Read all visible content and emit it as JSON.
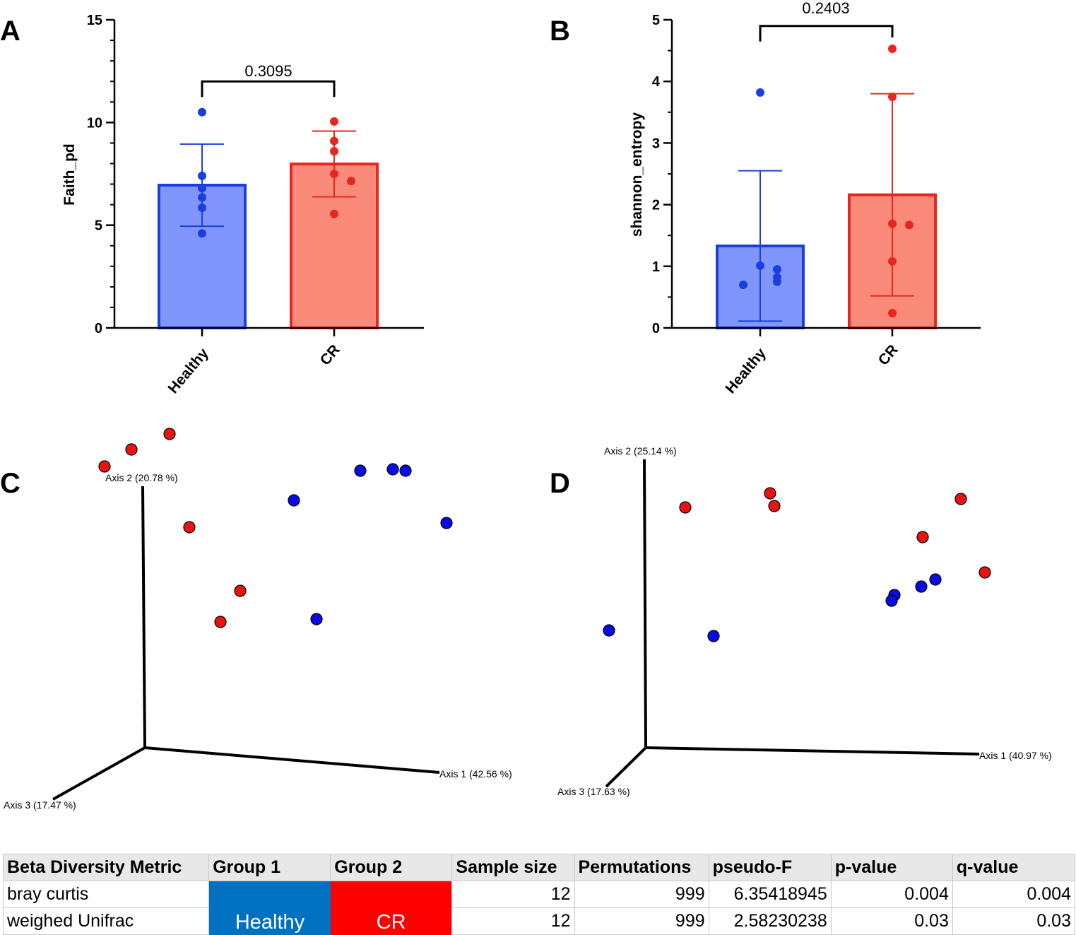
{
  "colors": {
    "healthy": "#1a3fe0",
    "healthy_fill": "#8096fc",
    "cr": "#e8261c",
    "cr_fill": "#fa8b7b",
    "pcoa_blue": "#0a0ae6",
    "pcoa_red": "#e81414",
    "table_blue": "#0070c0",
    "table_red": "#ff0000"
  },
  "chart_data": [
    {
      "panel": "A",
      "type": "bar",
      "title": "",
      "xlabel": "",
      "ylabel": "Faith_pd",
      "ylim": [
        0,
        15
      ],
      "yticks": [
        0,
        5,
        10,
        15
      ],
      "minor_step": 1,
      "categories": [
        "Healthy",
        "CR"
      ],
      "means": [
        6.95,
        7.98
      ],
      "sd": [
        2.0,
        1.6
      ],
      "points": [
        [
          10.5,
          7.4,
          6.8,
          6.35,
          5.85,
          4.6
        ],
        [
          10.05,
          9.1,
          8.6,
          7.5,
          7.15,
          5.55
        ]
      ],
      "comparison": {
        "label": "0.3095",
        "y": 12.0
      }
    },
    {
      "panel": "B",
      "type": "bar",
      "title": "",
      "xlabel": "",
      "ylabel": "shannon_entropy",
      "ylim": [
        0,
        5
      ],
      "yticks": [
        0,
        1,
        2,
        3,
        4,
        5
      ],
      "minor_step": 0.5,
      "categories": [
        "Healthy",
        "CR"
      ],
      "means": [
        1.33,
        2.16
      ],
      "sd": [
        1.22,
        1.64
      ],
      "points": [
        [
          3.82,
          1.01,
          0.95,
          0.82,
          0.75,
          0.7
        ],
        [
          4.53,
          3.75,
          1.69,
          1.67,
          1.08,
          0.24
        ]
      ],
      "comparison": {
        "label": "0.2403",
        "y": 4.9
      }
    },
    {
      "panel": "C",
      "type": "scatter",
      "title": "",
      "projection": "3d-pcoa",
      "axes": [
        "Axis 1 (42.56 %)",
        "Axis 2 (20.78 %)",
        "Axis 3 (17.47 %)"
      ],
      "series": [
        {
          "name": "CR",
          "color": "red",
          "points": [
            [
              -0.7,
              0.93
            ],
            [
              -0.97,
              0.82
            ],
            [
              -1.16,
              0.7
            ],
            [
              -0.56,
              0.27
            ],
            [
              -0.2,
              -0.18
            ],
            [
              -0.34,
              -0.4
            ]
          ]
        },
        {
          "name": "Healthy",
          "color": "blue",
          "points": [
            [
              0.88,
              0.68
            ],
            [
              0.97,
              0.67
            ],
            [
              0.65,
              0.67
            ],
            [
              0.18,
              0.46
            ],
            [
              1.26,
              0.3
            ],
            [
              0.34,
              -0.38
            ]
          ]
        }
      ]
    },
    {
      "panel": "D",
      "type": "scatter",
      "title": "",
      "projection": "3d-pcoa",
      "axes": [
        "Axis 1 (40.97 %)",
        "Axis 2 (25.14 %)",
        "Axis 3 (17.63 %)"
      ],
      "series": [
        {
          "name": "CR",
          "color": "red",
          "points": [
            [
              -0.3,
              0.86
            ],
            [
              -0.27,
              0.77
            ],
            [
              -0.9,
              0.76
            ],
            [
              1.05,
              0.82
            ],
            [
              0.78,
              0.55
            ],
            [
              1.22,
              0.3
            ]
          ]
        },
        {
          "name": "Healthy",
          "color": "blue",
          "points": [
            [
              0.87,
              0.25
            ],
            [
              0.77,
              0.2
            ],
            [
              0.58,
              0.14
            ],
            [
              0.56,
              0.1
            ],
            [
              -1.44,
              -0.11
            ],
            [
              -0.7,
              -0.15
            ]
          ]
        }
      ]
    }
  ],
  "table": {
    "headers": [
      "Beta Diversity Metric",
      "Group 1",
      "Group 2",
      "Sample size",
      "Permutations",
      "pseudo-F",
      "p-value",
      "q-value"
    ],
    "group1": "Healthy",
    "group2": "CR",
    "rows": [
      {
        "metric": "bray curtis",
        "sample_size": "12",
        "permutations": "999",
        "pseudo_f": "6.35418945",
        "p_value": "0.004",
        "q_value": "0.004"
      },
      {
        "metric": "weighed Unifrac",
        "sample_size": "12",
        "permutations": "999",
        "pseudo_f": "2.58230238",
        "p_value": "0.03",
        "q_value": "0.03"
      }
    ]
  }
}
